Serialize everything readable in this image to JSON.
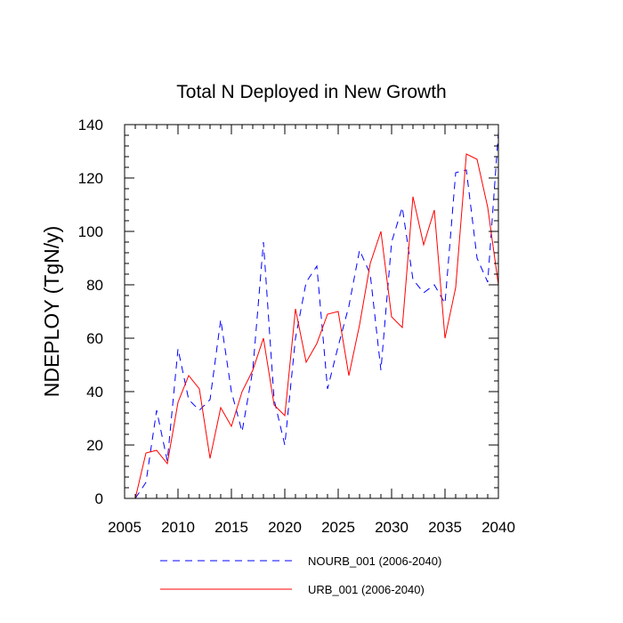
{
  "chart_data": {
    "type": "line",
    "title": "Total N Deployed in New Growth",
    "xlabel": "",
    "ylabel": "NDEPLOY  (TgN/y)",
    "xlim": [
      2005,
      2040
    ],
    "ylim": [
      0,
      140
    ],
    "x_ticks": [
      2005,
      2010,
      2015,
      2020,
      2025,
      2030,
      2035,
      2040
    ],
    "y_ticks": [
      0,
      20,
      40,
      60,
      80,
      100,
      120,
      140
    ],
    "grid": false,
    "legend_position": "bottom",
    "x": [
      2006,
      2007,
      2008,
      2009,
      2010,
      2011,
      2012,
      2013,
      2014,
      2015,
      2016,
      2017,
      2018,
      2019,
      2020,
      2021,
      2022,
      2023,
      2024,
      2025,
      2026,
      2027,
      2028,
      2029,
      2030,
      2031,
      2032,
      2033,
      2034,
      2035,
      2036,
      2037,
      2038,
      2039,
      2040
    ],
    "series": [
      {
        "name": "NOURB_001 (2006-2040)",
        "color": "#0000ff",
        "style": "dashed",
        "values": [
          0,
          6,
          33,
          14,
          56,
          37,
          33,
          37,
          67,
          40,
          25,
          48,
          96,
          37,
          20,
          60,
          81,
          87,
          41,
          57,
          72,
          93,
          84,
          48,
          96,
          109,
          82,
          77,
          80,
          73,
          122,
          123,
          90,
          81,
          137
        ]
      },
      {
        "name": "URB_001 (2006-2040)",
        "color": "#ff0000",
        "style": "solid",
        "values": [
          0,
          17,
          18,
          13,
          36,
          46,
          41,
          15,
          34,
          27,
          40,
          48,
          60,
          35,
          31,
          71,
          51,
          58,
          69,
          70,
          46,
          65,
          88,
          100,
          68,
          64,
          113,
          95,
          108,
          60,
          79,
          129,
          127,
          109,
          80
        ]
      }
    ]
  }
}
